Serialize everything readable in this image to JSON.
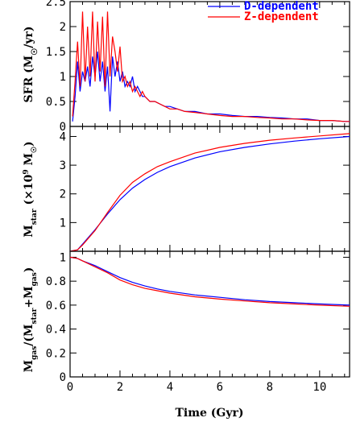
{
  "chart_data": [
    {
      "type": "line",
      "ylabel": "SFR (M☉/yr)",
      "xlim": [
        0,
        11.2
      ],
      "ylim": [
        0,
        2.5
      ],
      "yticks": [
        "0",
        "0.5",
        "1",
        "1.5",
        "2",
        "2.5"
      ],
      "legend": {
        "placement": "top-right",
        "entries": [
          "D-dependent",
          "Z-dependent"
        ]
      },
      "series": [
        {
          "name": "D-dependent",
          "color": "#0000ff",
          "x": [
            0.1,
            0.2,
            0.3,
            0.4,
            0.5,
            0.6,
            0.7,
            0.8,
            0.9,
            1.0,
            1.1,
            1.2,
            1.3,
            1.4,
            1.5,
            1.6,
            1.7,
            1.8,
            1.9,
            2.0,
            2.1,
            2.2,
            2.3,
            2.4,
            2.5,
            2.6,
            2.7,
            2.8,
            2.9,
            3.0,
            3.2,
            3.4,
            3.6,
            3.8,
            4.0,
            4.3,
            4.6,
            5.0,
            5.5,
            6.0,
            6.5,
            7.0,
            7.5,
            8.0,
            8.5,
            9.0,
            9.5,
            10.0,
            10.5,
            11.0,
            11.2
          ],
          "y": [
            0.1,
            0.6,
            1.3,
            0.7,
            1.1,
            0.9,
            1.2,
            0.8,
            1.4,
            1.0,
            1.5,
            0.9,
            1.3,
            0.7,
            1.2,
            0.3,
            1.4,
            1.0,
            1.3,
            0.9,
            1.1,
            0.8,
            0.9,
            0.8,
            1.0,
            0.7,
            0.8,
            0.7,
            0.6,
            0.6,
            0.5,
            0.5,
            0.45,
            0.4,
            0.4,
            0.35,
            0.3,
            0.3,
            0.25,
            0.25,
            0.22,
            0.2,
            0.2,
            0.18,
            0.17,
            0.15,
            0.15,
            0.12,
            0.12,
            0.1,
            0.1
          ]
        },
        {
          "name": "Z-dependent",
          "color": "#ff0000",
          "x": [
            0.1,
            0.2,
            0.3,
            0.4,
            0.5,
            0.6,
            0.7,
            0.8,
            0.9,
            1.0,
            1.1,
            1.2,
            1.3,
            1.4,
            1.5,
            1.6,
            1.7,
            1.8,
            1.9,
            2.0,
            2.1,
            2.2,
            2.3,
            2.4,
            2.5,
            2.6,
            2.7,
            2.8,
            2.9,
            3.0,
            3.2,
            3.4,
            3.6,
            3.8,
            4.0,
            4.3,
            4.6,
            5.0,
            5.5,
            6.0,
            6.5,
            7.0,
            7.5,
            8.0,
            8.5,
            9.0,
            9.5,
            10.0,
            10.5,
            11.0,
            11.2
          ],
          "y": [
            0.2,
            0.9,
            1.7,
            0.8,
            2.3,
            0.9,
            2.0,
            1.0,
            2.3,
            0.9,
            2.1,
            1.1,
            2.2,
            0.8,
            2.3,
            1.0,
            1.8,
            1.5,
            1.1,
            1.6,
            0.9,
            1.0,
            0.8,
            0.9,
            0.7,
            0.8,
            0.7,
            0.6,
            0.7,
            0.6,
            0.5,
            0.5,
            0.45,
            0.4,
            0.35,
            0.35,
            0.3,
            0.28,
            0.25,
            0.22,
            0.2,
            0.2,
            0.18,
            0.17,
            0.15,
            0.15,
            0.13,
            0.12,
            0.12,
            0.1,
            0.1
          ]
        }
      ]
    },
    {
      "type": "line",
      "ylabel": "M_star (×10⁹ M☉)",
      "xlim": [
        0,
        11.2
      ],
      "ylim": [
        0,
        4.35
      ],
      "yticks": [
        "1",
        "2",
        "3",
        "4"
      ],
      "series": [
        {
          "name": "D-dependent",
          "color": "#0000ff",
          "x": [
            0,
            0.3,
            0.5,
            1,
            1.5,
            2,
            2.5,
            3,
            3.5,
            4,
            5,
            6,
            7,
            8,
            9,
            10,
            11.2
          ],
          "y": [
            0,
            0.05,
            0.25,
            0.75,
            1.3,
            1.8,
            2.2,
            2.5,
            2.75,
            2.95,
            3.25,
            3.47,
            3.62,
            3.74,
            3.84,
            3.92,
            4.0
          ]
        },
        {
          "name": "Z-dependent",
          "color": "#ff0000",
          "x": [
            0,
            0.3,
            0.5,
            1,
            1.5,
            2,
            2.5,
            3,
            3.5,
            4,
            5,
            6,
            7,
            8,
            9,
            10,
            11.2
          ],
          "y": [
            0,
            0.05,
            0.22,
            0.72,
            1.35,
            1.95,
            2.4,
            2.7,
            2.95,
            3.12,
            3.42,
            3.62,
            3.76,
            3.87,
            3.95,
            4.02,
            4.1
          ]
        }
      ]
    },
    {
      "type": "line",
      "ylabel": "M_gas/(M_star+M_gas)",
      "xlabel": "Time (Gyr)",
      "xlim": [
        0,
        11.2
      ],
      "ylim": [
        0,
        1.05
      ],
      "yticks": [
        "0",
        "0.2",
        "0.4",
        "0.6",
        "0.8",
        "1"
      ],
      "xticks": [
        "0",
        "2",
        "4",
        "6",
        "8",
        "10"
      ],
      "series": [
        {
          "name": "D-dependent",
          "color": "#0000ff",
          "x": [
            0,
            0.3,
            0.5,
            1,
            1.5,
            2,
            2.5,
            3,
            3.5,
            4,
            5,
            6,
            7,
            8,
            9,
            10,
            11.2
          ],
          "y": [
            1.0,
            0.99,
            0.97,
            0.93,
            0.88,
            0.83,
            0.79,
            0.76,
            0.735,
            0.715,
            0.685,
            0.665,
            0.645,
            0.63,
            0.62,
            0.61,
            0.6
          ]
        },
        {
          "name": "Z-dependent",
          "color": "#ff0000",
          "x": [
            0,
            0.3,
            0.5,
            1,
            1.5,
            2,
            2.5,
            3,
            3.5,
            4,
            5,
            6,
            7,
            8,
            9,
            10,
            11.2
          ],
          "y": [
            1.0,
            0.99,
            0.97,
            0.92,
            0.87,
            0.81,
            0.77,
            0.74,
            0.72,
            0.7,
            0.67,
            0.65,
            0.635,
            0.62,
            0.61,
            0.6,
            0.59
          ]
        }
      ]
    }
  ]
}
